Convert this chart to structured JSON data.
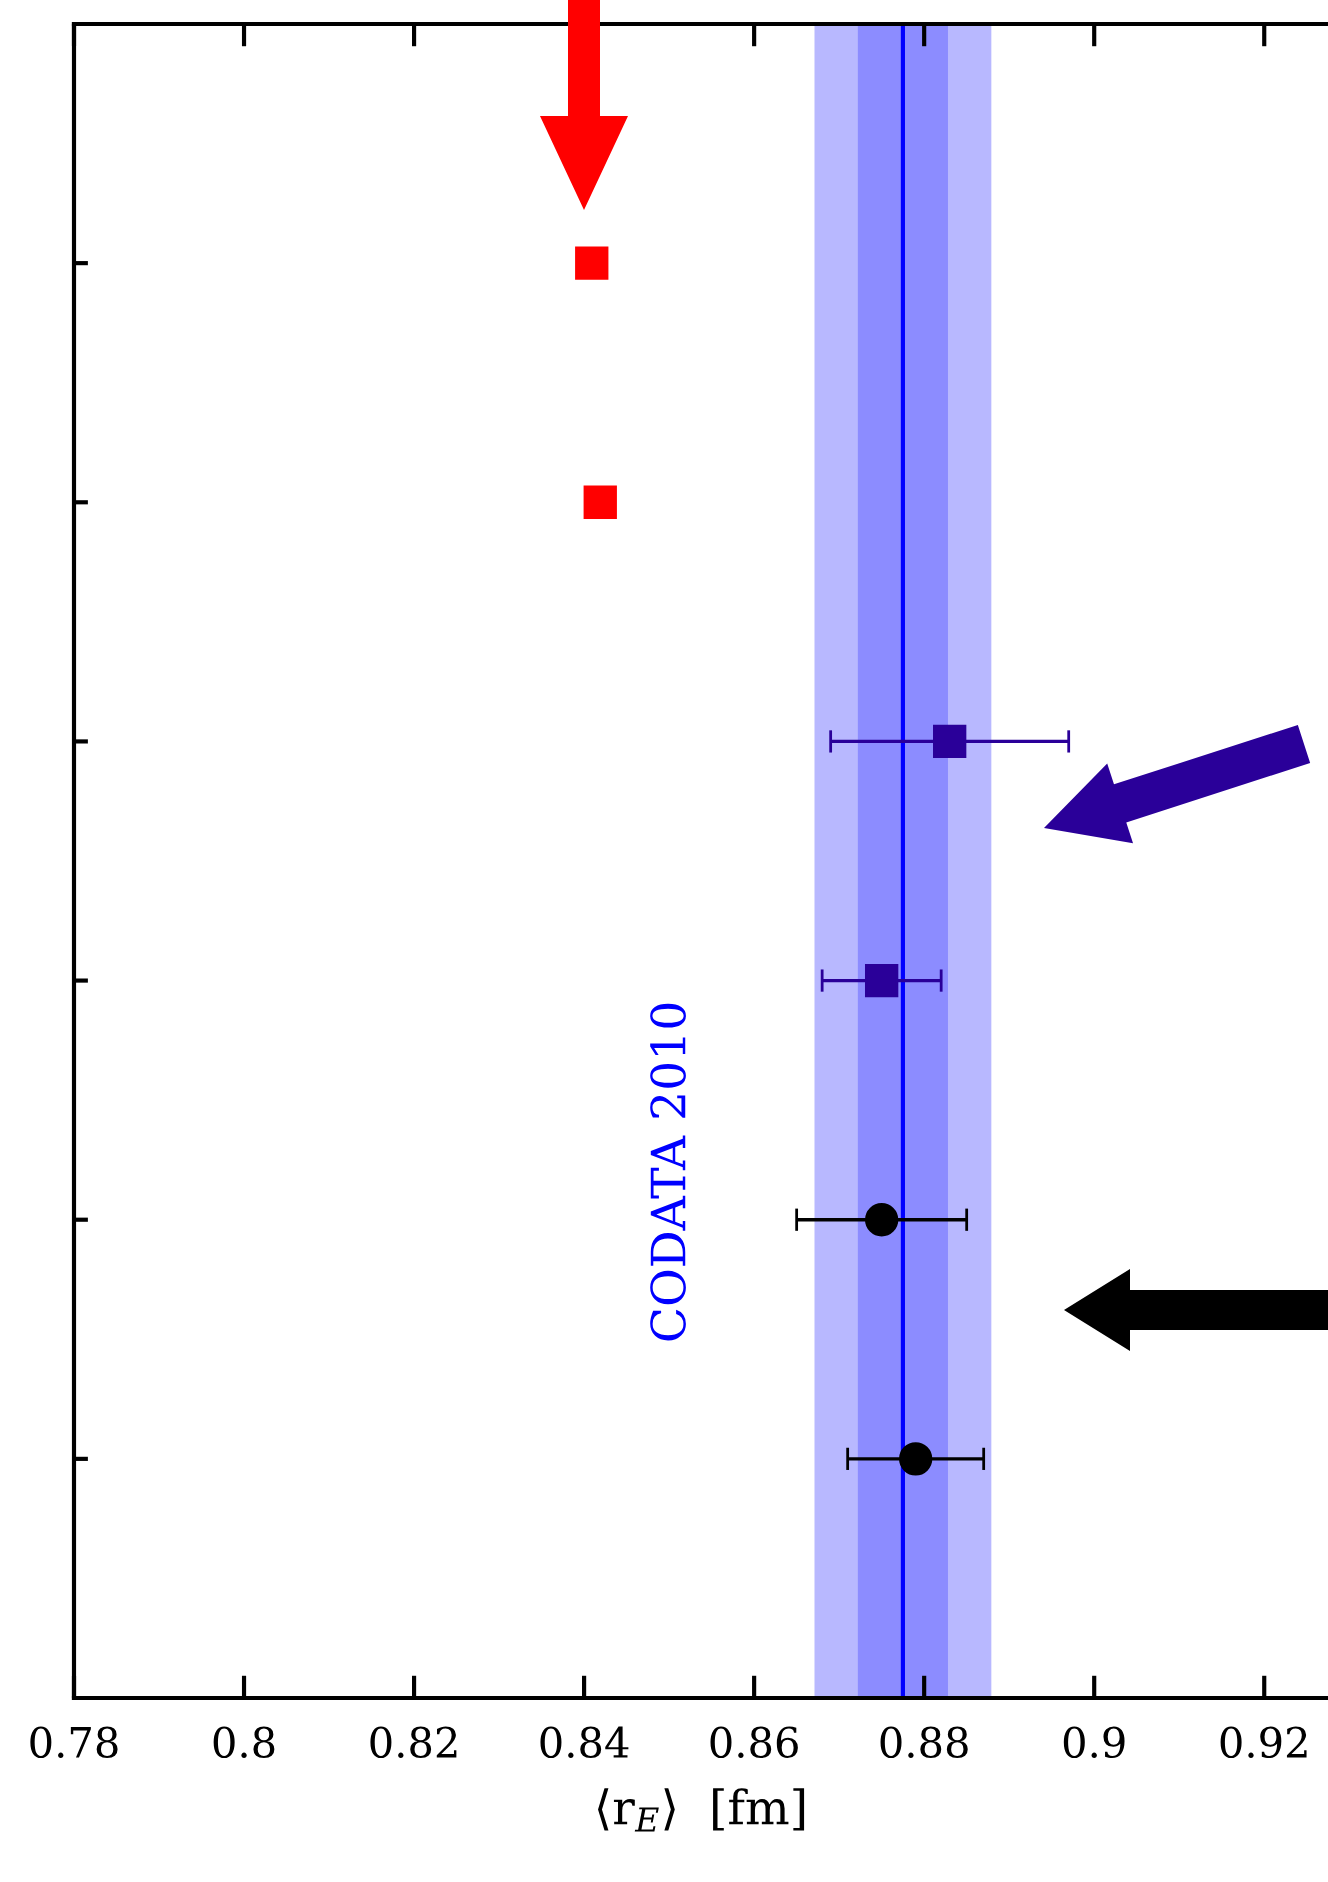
{
  "chart_data": {
    "type": "scatter",
    "orientation": "horizontal",
    "xlabel": "⟨r$_{E}$⟩  [fm]",
    "categories": [
      null,
      null,
      null,
      null,
      null,
      null
    ],
    "xlim": [
      0.78,
      0.9275
    ],
    "xticks": [
      0.78,
      0.8,
      0.82,
      0.84,
      0.86,
      0.88,
      0.9,
      0.92
    ],
    "tick_labels": "x",
    "grid": false,
    "legend": false,
    "series": [
      {
        "color": "#ff0000",
        "marker": "square",
        "values": [
          0.8409,
          0.8419,
          null,
          null,
          null,
          null
        ]
      },
      {
        "color": "#2a0099",
        "marker": "square",
        "values": [
          null,
          null,
          0.883,
          0.875,
          null,
          null
        ],
        "errors": [
          null,
          null,
          0.014,
          0.007,
          null,
          null
        ]
      },
      {
        "color": "#000000",
        "marker": "circle",
        "values": [
          null,
          null,
          null,
          null,
          0.875,
          0.879
        ],
        "errors": [
          null,
          null,
          null,
          null,
          0.01,
          0.008
        ]
      }
    ],
    "ref_lines": [
      {
        "axis": "x",
        "value": 0.8775,
        "color": "#0000ff",
        "line_style": "solid"
      }
    ],
    "bands": [
      {
        "axis": "x",
        "from": 0.8671,
        "to": 0.8879,
        "color": "#b8b8ff",
        "label": "CODATA 2010"
      },
      {
        "axis": "x",
        "from": 0.8722,
        "to": 0.8828,
        "color": "#8c8cff"
      }
    ]
  }
}
